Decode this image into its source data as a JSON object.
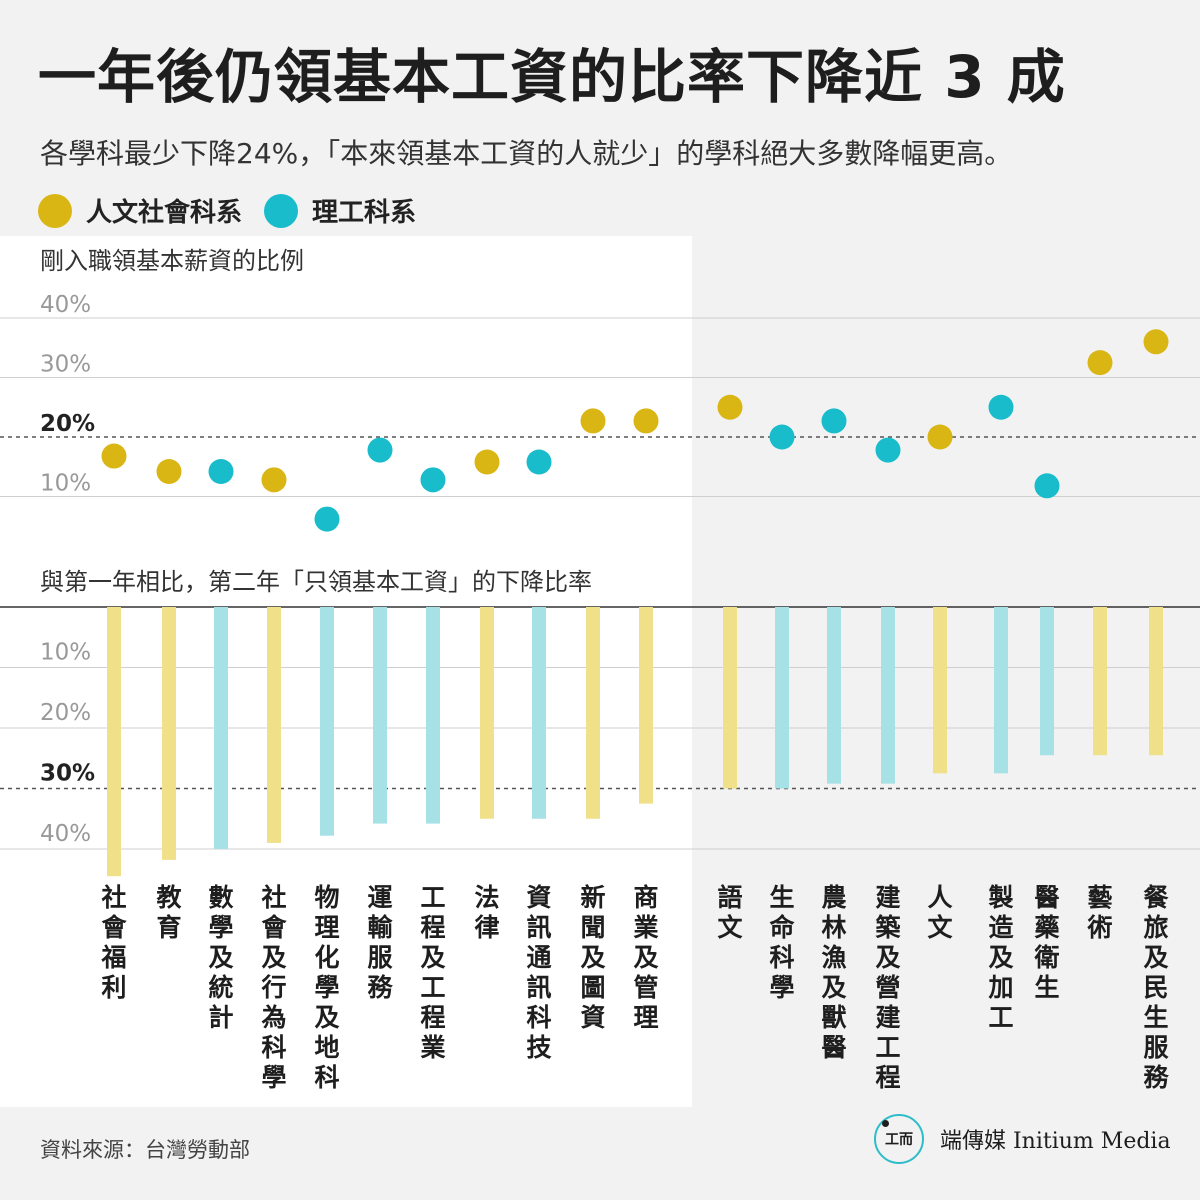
{
  "header": {
    "title": "一年後仍領基本工資的比率下降近 3 成",
    "subtitle": "各學科最少下降24%，「本來領基本工資的人就少」的學科絕大多數降幅更高。"
  },
  "legend": [
    {
      "label": "人文社會科系",
      "color": "#d9b614"
    },
    {
      "label": "理工科系",
      "color": "#18bccb"
    }
  ],
  "colors": {
    "humanities_dot": "#d9b614",
    "science_dot": "#18bccb",
    "humanities_bar": "#f0e08a",
    "science_bar": "#a6e1e6",
    "panel_light": "#ffffff",
    "panel_dark": "#f2f2f2"
  },
  "chart_data": {
    "type": "scatter+bar",
    "top_panel": {
      "title": "剛入職領基本薪資的比例",
      "ticks": [
        "40%",
        "30%",
        "20%",
        "10%"
      ],
      "tick_values": [
        40,
        30,
        20,
        10
      ],
      "reference_value": 20,
      "ylim": [
        0,
        40
      ]
    },
    "bottom_panel": {
      "title": "與第一年相比，第二年「只領基本工資」的下降比率",
      "ticks": [
        "10%",
        "20%",
        "30%",
        "40%"
      ],
      "tick_values": [
        10,
        20,
        30,
        40
      ],
      "reference_value": 30,
      "ylim": [
        0,
        40
      ]
    },
    "categories": [
      {
        "label": "社會福利",
        "group": "humanities",
        "entry_rate": 16.8,
        "decline": 44.5
      },
      {
        "label": "教育",
        "group": "humanities",
        "entry_rate": 14.2,
        "decline": 41.8
      },
      {
        "label": "數學及統計",
        "group": "science",
        "entry_rate": 14.2,
        "decline": 40.0
      },
      {
        "label": "社會及行為科學",
        "group": "humanities",
        "entry_rate": 12.8,
        "decline": 39.0
      },
      {
        "label": "物理化學及地科",
        "group": "science",
        "entry_rate": 6.2,
        "decline": 37.8
      },
      {
        "label": "運輸服務",
        "group": "science",
        "entry_rate": 17.8,
        "decline": 35.8
      },
      {
        "label": "工程及工程業",
        "group": "science",
        "entry_rate": 12.8,
        "decline": 35.8
      },
      {
        "label": "法律",
        "group": "humanities",
        "entry_rate": 15.8,
        "decline": 35.0
      },
      {
        "label": "資訊通訊科技",
        "group": "science",
        "entry_rate": 15.8,
        "decline": 35.0
      },
      {
        "label": "新聞及圖資",
        "group": "humanities",
        "entry_rate": 22.7,
        "decline": 35.0
      },
      {
        "label": "商業及管理",
        "group": "humanities",
        "entry_rate": 22.7,
        "decline": 32.5
      },
      {
        "label": "語文",
        "group": "humanities",
        "entry_rate": 25.0,
        "decline": 30.0
      },
      {
        "label": "生命科學",
        "group": "science",
        "entry_rate": 20.0,
        "decline": 30.0
      },
      {
        "label": "農林漁及獸醫",
        "group": "science",
        "entry_rate": 22.7,
        "decline": 29.2
      },
      {
        "label": "建築及營建工程",
        "group": "science",
        "entry_rate": 17.8,
        "decline": 29.2
      },
      {
        "label": "人文",
        "group": "humanities",
        "entry_rate": 20.0,
        "decline": 27.5
      },
      {
        "label": "製造及加工",
        "group": "science",
        "entry_rate": 25.0,
        "decline": 27.5
      },
      {
        "label": "醫藥衛生",
        "group": "science",
        "entry_rate": 11.8,
        "decline": 24.5
      },
      {
        "label": "藝術",
        "group": "humanities",
        "entry_rate": 32.5,
        "decline": 24.5
      },
      {
        "label": "餐旅及民生服務",
        "group": "humanities",
        "entry_rate": 36.0,
        "decline": 24.5
      }
    ]
  },
  "footer": {
    "source": "資料來源：台灣勞動部",
    "logo_glyph": "工而",
    "brand": "端傳媒 Initium Media"
  }
}
